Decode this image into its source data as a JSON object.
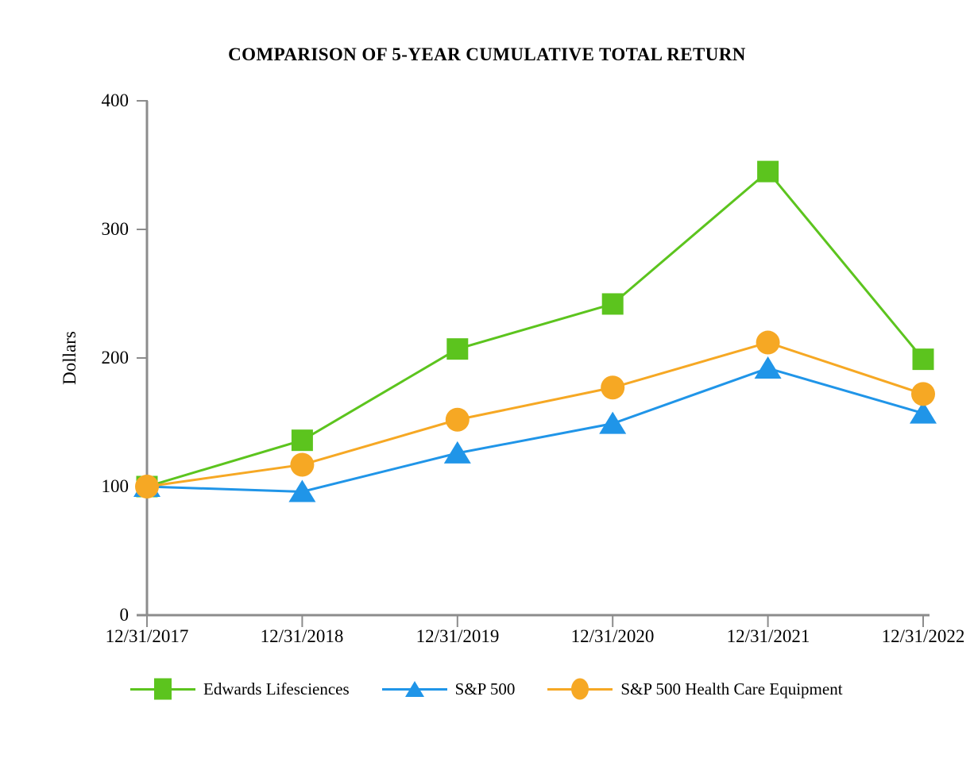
{
  "title": "COMPARISON OF 5-YEAR CUMULATIVE TOTAL RETURN",
  "chart_data": {
    "type": "line",
    "title": "COMPARISON OF 5-YEAR CUMULATIVE TOTAL RETURN",
    "xlabel": "",
    "ylabel": "Dollars",
    "ylim": [
      0,
      400
    ],
    "ytick_step": 100,
    "yticks": [
      "400",
      "300",
      "200",
      "100",
      "0"
    ],
    "grid": false,
    "legend_position": "bottom",
    "axis_color": "#8C8C8C",
    "categories": [
      "12/31/2017",
      "12/31/2018",
      "12/31/2019",
      "12/31/2020",
      "12/31/2021",
      "12/31/2022"
    ],
    "series": [
      {
        "name": "Edwards Lifesciences",
        "marker": "square",
        "color": "#5CC41E",
        "values": [
          100,
          136,
          207,
          242,
          345,
          199
        ]
      },
      {
        "name": "S&P 500",
        "marker": "triangle",
        "color": "#2095E8",
        "values": [
          100,
          96,
          126,
          149,
          192,
          157
        ]
      },
      {
        "name": "S&P 500 Health Care Equipment",
        "marker": "circle",
        "color": "#F6A824",
        "values": [
          100,
          117,
          152,
          177,
          212,
          172
        ]
      }
    ]
  }
}
